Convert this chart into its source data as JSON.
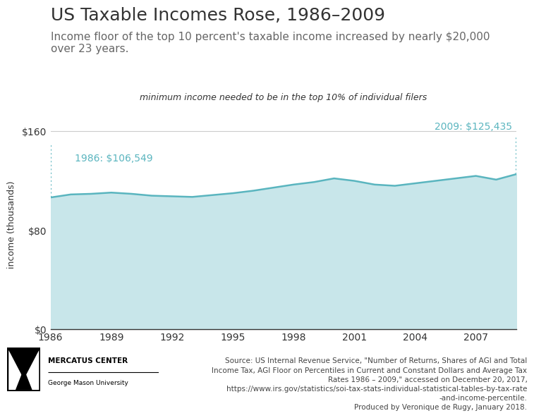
{
  "title": "US Taxable Incomes Rose, 1986–2009",
  "subtitle": "Income floor of the top 10 percent's taxable income increased by nearly $20,000\nover 23 years.",
  "chart_label": "minimum income needed to be in the top 10% of individual filers",
  "years": [
    1986,
    1987,
    1988,
    1989,
    1990,
    1991,
    1992,
    1993,
    1994,
    1995,
    1996,
    1997,
    1998,
    1999,
    2000,
    2001,
    2002,
    2003,
    2004,
    2005,
    2006,
    2007,
    2008,
    2009
  ],
  "values": [
    106549,
    109000,
    109500,
    110500,
    109500,
    108000,
    107500,
    107000,
    108500,
    110000,
    112000,
    114500,
    117000,
    119000,
    122000,
    120000,
    117000,
    116000,
    118000,
    120000,
    122000,
    124000,
    121000,
    125435
  ],
  "line_color": "#5ab5bf",
  "fill_color": "#c8e6ea",
  "annotation_color": "#5ab5bf",
  "background_color": "#ffffff",
  "ylabel": "income (thousands)",
  "ylim": [
    0,
    170
  ],
  "yticks": [
    0,
    80,
    160
  ],
  "ytick_labels": [
    "$0",
    "$80",
    "$160"
  ],
  "xticks": [
    1986,
    1989,
    1992,
    1995,
    1998,
    2001,
    2004,
    2007
  ],
  "start_label": "1986: $106,549",
  "end_label": "2009: $125,435",
  "source_text": "Source: US Internal Revenue Service, \"Number of Returns, Shares of AGI and Total\nIncome Tax, AGI Floor on Percentiles in Current and Constant Dollars and Average Tax\nRates 1986 – 2009,\" accessed on December 20, 2017,\nhttps://www.irs.gov/statistics/soi-tax-stats-individual-statistical-tables-by-tax-rate\n-and-income-percentile.\nProduced by Veronique de Rugy, January 2018.",
  "logo_text_main": "MERCATUS CENTER",
  "logo_text_sub": "George Mason University",
  "grid_color": "#cccccc",
  "axis_color": "#333333",
  "text_color": "#333333",
  "title_fontsize": 18,
  "subtitle_fontsize": 11,
  "label_fontsize": 9,
  "axis_label_fontsize": 9,
  "tick_fontsize": 10,
  "annotation_fontsize": 10,
  "source_fontsize": 7.5
}
